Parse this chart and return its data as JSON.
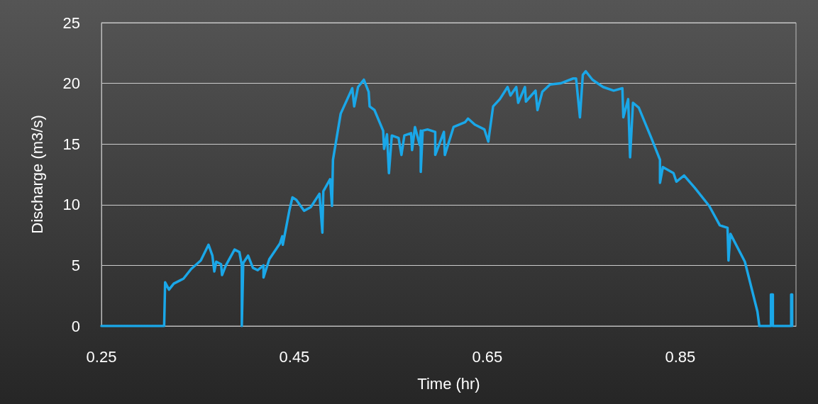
{
  "chart_data": {
    "type": "line",
    "xlabel": "Time (hr)",
    "ylabel": "Discharge (m3/s)",
    "color": "#1aa7e8",
    "grid": "y",
    "marker": "none",
    "line_style": "solid",
    "xlim": [
      0.25,
      0.97
    ],
    "xticks": [
      0.25,
      0.45,
      0.65,
      0.85
    ],
    "ylim": [
      0,
      25
    ],
    "yticks": [
      0,
      5,
      10,
      15,
      20,
      25
    ],
    "x": [
      0.25,
      0.315,
      0.316,
      0.32,
      0.325,
      0.335,
      0.343,
      0.353,
      0.361,
      0.365,
      0.367,
      0.369,
      0.374,
      0.375,
      0.379,
      0.388,
      0.393,
      0.3955,
      0.3955,
      0.397,
      0.402,
      0.407,
      0.412,
      0.418,
      0.418,
      0.424,
      0.435,
      0.4375,
      0.438,
      0.445,
      0.448,
      0.452,
      0.46,
      0.467,
      0.476,
      0.479,
      0.48,
      0.487,
      0.489,
      0.49,
      0.498,
      0.51,
      0.512,
      0.516,
      0.522,
      0.527,
      0.528,
      0.533,
      0.542,
      0.543,
      0.546,
      0.548,
      0.551,
      0.558,
      0.561,
      0.564,
      0.571,
      0.572,
      0.575,
      0.58,
      0.581,
      0.581,
      0.583,
      0.588,
      0.596,
      0.596,
      0.605,
      0.606,
      0.615,
      0.627,
      0.63,
      0.637,
      0.647,
      0.651,
      0.656,
      0.663,
      0.671,
      0.674,
      0.68,
      0.682,
      0.689,
      0.69,
      0.7,
      0.702,
      0.707,
      0.715,
      0.726,
      0.739,
      0.742,
      0.746,
      0.749,
      0.752,
      0.759,
      0.77,
      0.781,
      0.79,
      0.791,
      0.796,
      0.798,
      0.801,
      0.807,
      0.82,
      0.829,
      0.829,
      0.832,
      0.843,
      0.846,
      0.854,
      0.865,
      0.88,
      0.891,
      0.899,
      0.9,
      0.902,
      0.917,
      0.93,
      0.932,
      0.944,
      0.944,
      0.946,
      0.946,
      0.965,
      0.965,
      0.966,
      0.966
    ],
    "values": [
      0,
      0,
      3.6,
      3.0,
      3.5,
      3.9,
      4.7,
      5.4,
      6.7,
      5.8,
      4.5,
      5.3,
      5.1,
      4.2,
      5.0,
      6.3,
      6.1,
      5.0,
      0,
      5.2,
      5.8,
      4.8,
      4.6,
      5.0,
      4.0,
      5.5,
      6.8,
      7.4,
      6.7,
      9.6,
      10.6,
      10.4,
      9.5,
      9.8,
      10.9,
      7.7,
      11.1,
      12.1,
      9.9,
      13.7,
      17.5,
      19.6,
      18.1,
      19.7,
      20.3,
      19.3,
      18.1,
      17.8,
      16.1,
      14.6,
      15.8,
      12.6,
      15.7,
      15.5,
      14.1,
      15.7,
      15.9,
      14.5,
      16.4,
      14.9,
      16.1,
      12.7,
      16.1,
      16.2,
      16.0,
      14.1,
      16.0,
      14.1,
      16.4,
      16.8,
      17.1,
      16.6,
      16.2,
      15.2,
      18.1,
      18.7,
      19.7,
      19.0,
      19.7,
      18.4,
      19.7,
      18.5,
      19.4,
      17.8,
      19.3,
      19.9,
      20.0,
      20.4,
      20.4,
      17.2,
      20.7,
      21.0,
      20.3,
      19.7,
      19.4,
      19.6,
      17.2,
      18.7,
      13.9,
      18.4,
      18.0,
      15.5,
      13.7,
      11.8,
      13.1,
      12.6,
      11.9,
      12.4,
      11.4,
      9.9,
      8.3,
      8.1,
      5.4,
      7.6,
      5.3,
      1.2,
      0,
      0,
      2.6,
      2.6,
      0,
      0,
      2.6,
      2.6,
      0
    ]
  }
}
